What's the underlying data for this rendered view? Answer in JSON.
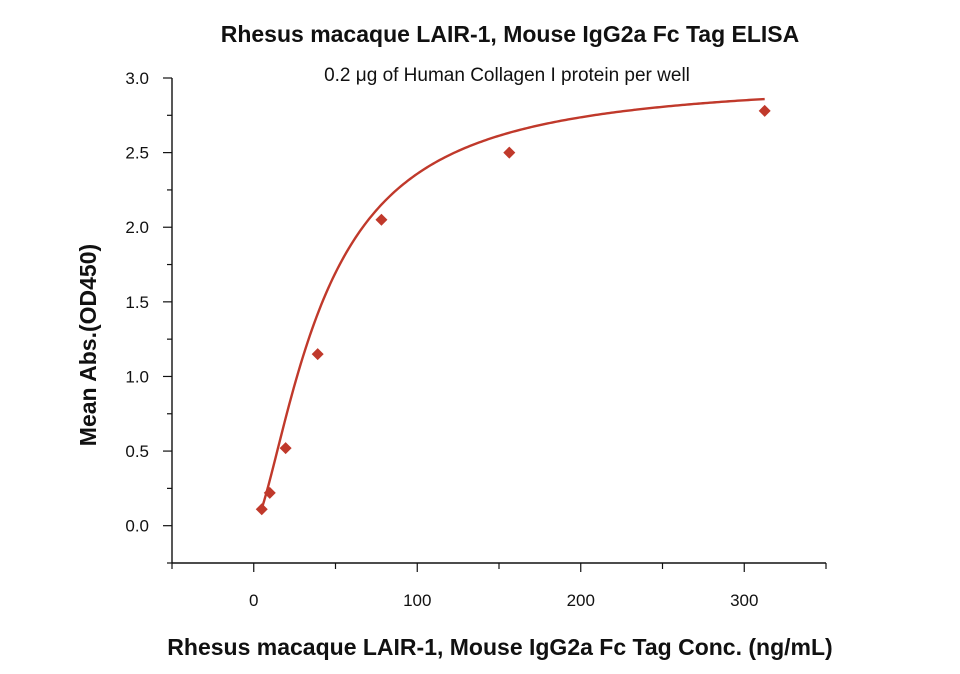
{
  "chart_data": {
    "type": "scatter",
    "title": "Rhesus macaque LAIR-1, Mouse IgG2a Fc Tag ELISA",
    "subtitle": "0.2 μg of Human Collagen I protein per well",
    "xlabel": "Rhesus macaque LAIR-1, Mouse IgG2a Fc Tag Conc. (ng/mL)",
    "ylabel": "Mean Abs.(OD450)",
    "xlim": [
      -50,
      350
    ],
    "ylim": [
      -0.25,
      3.0
    ],
    "xticks": [
      0,
      100,
      200,
      300
    ],
    "xtick_labels": [
      "0",
      "100",
      "200",
      "300"
    ],
    "yticks": [
      0.0,
      0.5,
      1.0,
      1.5,
      2.0,
      2.5,
      3.0
    ],
    "ytick_labels": [
      "0.0",
      "0.5",
      "1.0",
      "1.5",
      "2.0",
      "2.5",
      "3.0"
    ],
    "grid": false,
    "series": [
      {
        "marker": "diamond",
        "color": "#c0392b",
        "x": [
          4.9,
          9.8,
          19.5,
          39.1,
          78.1,
          156.3,
          312.5
        ],
        "y": [
          0.11,
          0.22,
          0.52,
          1.15,
          2.05,
          2.5,
          2.78
        ],
        "fit": "4PL"
      }
    ]
  }
}
